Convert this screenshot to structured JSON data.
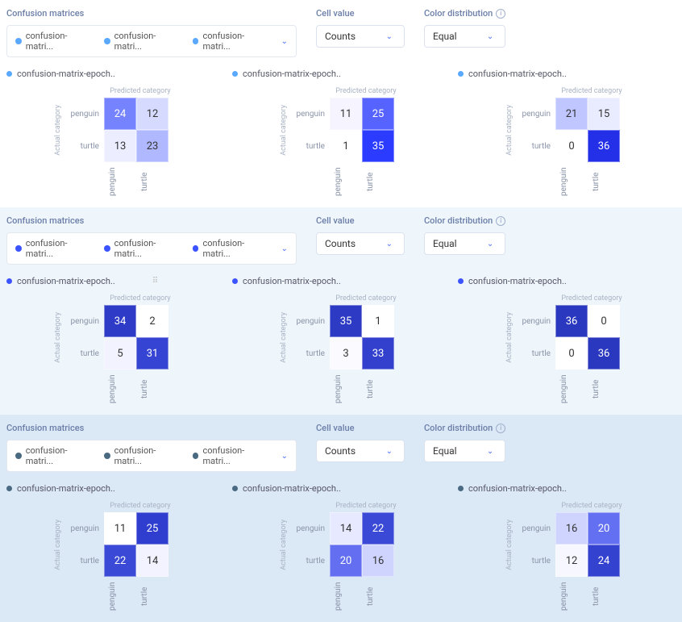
{
  "labels": {
    "confusion_matrices": "Confusion matrices",
    "cell_value": "Cell value",
    "color_distribution": "Color distribution",
    "predicted_category": "Predicted category",
    "actual_category": "Actual category"
  },
  "chip_label": "confusion-matri...",
  "select_cell_value": "Counts",
  "select_color_dist": "Equal",
  "matrix_title": "confusion-matrix-epoch..",
  "row_categories": [
    "penguin",
    "turtle"
  ],
  "col_categories": [
    "penguin",
    "turtle"
  ],
  "sections": [
    {
      "bg": "#ffffff",
      "bullet_color": "#5aa8ff",
      "chevron_color": "#4b6fff",
      "matrices": [
        {
          "cells": [
            [
              24,
              12
            ],
            [
              13,
              23
            ]
          ],
          "colors": [
            [
              "#7583ff",
              "#d6daff"
            ],
            [
              "#eceeff",
              "#b0b8ff"
            ]
          ],
          "text_colors": [
            [
              "#ffffff",
              "#333333"
            ],
            [
              "#333333",
              "#333333"
            ]
          ]
        },
        {
          "cells": [
            [
              11,
              25
            ],
            [
              1,
              35
            ]
          ],
          "colors": [
            [
              "#f6f4ff",
              "#5663ff"
            ],
            [
              "#ffffff",
              "#2b3bff"
            ]
          ],
          "text_colors": [
            [
              "#333333",
              "#ffffff"
            ],
            [
              "#333333",
              "#ffffff"
            ]
          ]
        },
        {
          "cells": [
            [
              21,
              15
            ],
            [
              0,
              36
            ]
          ],
          "colors": [
            [
              "#c0c6ff",
              "#e9ebff"
            ],
            [
              "#ffffff",
              "#2430e8"
            ]
          ],
          "text_colors": [
            [
              "#333333",
              "#333333"
            ],
            [
              "#333333",
              "#ffffff"
            ]
          ]
        }
      ]
    },
    {
      "bg": "#eef5fb",
      "bullet_color": "#3b54ff",
      "chevron_color": "#4b6fff",
      "show_drag_handle_on_first": true,
      "matrices": [
        {
          "cells": [
            [
              34,
              2
            ],
            [
              5,
              31
            ]
          ],
          "colors": [
            [
              "#2d3bc7",
              "#ffffff"
            ],
            [
              "#f2f3ff",
              "#3644d3"
            ]
          ],
          "text_colors": [
            [
              "#ffffff",
              "#333333"
            ],
            [
              "#333333",
              "#ffffff"
            ]
          ]
        },
        {
          "cells": [
            [
              35,
              1
            ],
            [
              3,
              33
            ]
          ],
          "colors": [
            [
              "#2c3ac4",
              "#ffffff"
            ],
            [
              "#fbfbff",
              "#3240cd"
            ]
          ],
          "text_colors": [
            [
              "#ffffff",
              "#333333"
            ],
            [
              "#333333",
              "#ffffff"
            ]
          ]
        },
        {
          "cells": [
            [
              36,
              0
            ],
            [
              0,
              36
            ]
          ],
          "colors": [
            [
              "#2a38c0",
              "#ffffff"
            ],
            [
              "#ffffff",
              "#2a38c0"
            ]
          ],
          "text_colors": [
            [
              "#ffffff",
              "#333333"
            ],
            [
              "#333333",
              "#ffffff"
            ]
          ]
        }
      ]
    },
    {
      "bg": "#dbe8f6",
      "bullet_color": "#4a6a82",
      "chevron_color": "#4b6fff",
      "matrices": [
        {
          "cells": [
            [
              11,
              25
            ],
            [
              22,
              14
            ]
          ],
          "colors": [
            [
              "#ffffff",
              "#2f3ecf"
            ],
            [
              "#3a49d6",
              "#f2f3ff"
            ]
          ],
          "text_colors": [
            [
              "#333333",
              "#ffffff"
            ],
            [
              "#ffffff",
              "#333333"
            ]
          ]
        },
        {
          "cells": [
            [
              14,
              22
            ],
            [
              20,
              16
            ]
          ],
          "colors": [
            [
              "#e6e9ff",
              "#3a49d6"
            ],
            [
              "#636ff0",
              "#cfd4ff"
            ]
          ],
          "text_colors": [
            [
              "#333333",
              "#ffffff"
            ],
            [
              "#ffffff",
              "#333333"
            ]
          ]
        },
        {
          "cells": [
            [
              16,
              20
            ],
            [
              12,
              24
            ]
          ],
          "colors": [
            [
              "#cfd4ff",
              "#6470f2"
            ],
            [
              "#f7f8ff",
              "#3442d0"
            ]
          ],
          "text_colors": [
            [
              "#333333",
              "#ffffff"
            ],
            [
              "#333333",
              "#ffffff"
            ]
          ]
        }
      ]
    }
  ]
}
